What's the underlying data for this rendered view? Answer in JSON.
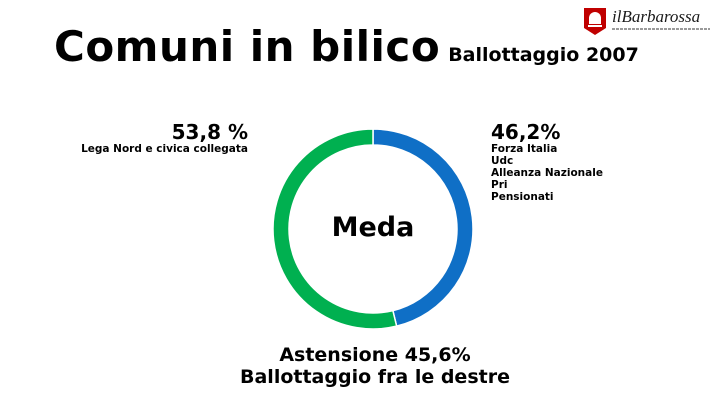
{
  "header": {
    "title": "Comuni in bilico",
    "subtitle": "Ballottaggio 2007",
    "logo_text": "ilBarbarossa"
  },
  "chart_data": {
    "type": "pie",
    "style": "donut",
    "center_label": "Meda",
    "slices": [
      {
        "value_label": "46,2%",
        "value": 46.2,
        "color": "#0f6fc6",
        "parties": [
          "Forza Italia",
          "Udc",
          "Alleanza Nazionale",
          "Pri",
          "Pensionati"
        ]
      },
      {
        "value_label": "53,8 %",
        "value": 53.8,
        "color": "#00b050",
        "parties": [
          "Lega Nord e civica collegata"
        ]
      }
    ]
  },
  "footer": {
    "line1": "Astensione 45,6%",
    "line2": "Ballottaggio fra le destre"
  },
  "colors": {
    "blue": "#0f6fc6",
    "green": "#00b050",
    "logo_red": "#c00000"
  }
}
